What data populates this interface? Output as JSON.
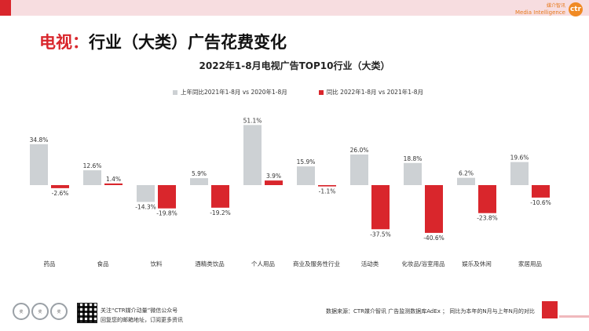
{
  "header": {
    "logo_cn": "媒介智讯",
    "logo_en": "Media Intelligence",
    "logo_mark": "ctr"
  },
  "page_title": {
    "prefix": "电视：",
    "main": "行业（大类）广告花费变化"
  },
  "colors": {
    "series_prior": "#cdd1d4",
    "series_current": "#d9262c",
    "accent": "#d9262c"
  },
  "chart_data": {
    "type": "bar",
    "title": "2022年1-8月电视广告TOP10行业（大类）",
    "categories": [
      "药品",
      "食品",
      "饮料",
      "酒精类饮品",
      "个人用品",
      "商业及服务性行业",
      "活动类",
      "化妆品/浴室用品",
      "娱乐及休闲",
      "家居用品"
    ],
    "series": [
      {
        "name": "上年同比2021年1-8月  vs  2020年1-8月",
        "values": [
          34.8,
          12.6,
          -14.3,
          5.9,
          51.1,
          15.9,
          26.0,
          18.8,
          6.2,
          19.6
        ],
        "labels": [
          "34.8%",
          "12.6%",
          "-14.3%",
          "5.9%",
          "51.1%",
          "15.9%",
          "26.0%",
          "18.8%",
          "6.2%",
          "19.6%"
        ]
      },
      {
        "name": "同比 2022年1-8月  vs  2021年1-8月",
        "values": [
          -2.6,
          1.4,
          -19.8,
          -19.2,
          3.9,
          -1.1,
          -37.5,
          -40.6,
          -23.8,
          -10.6
        ],
        "labels": [
          "-2.6%",
          "1.4%",
          "-19.8%",
          "-19.2%",
          "3.9%",
          "-1.1%",
          "-37.5%",
          "-40.6%",
          "-23.8%",
          "-10.6%"
        ]
      }
    ],
    "legend_position": "top",
    "grid": false
  },
  "footer": {
    "badges": [
      "奖",
      "奖",
      "奖"
    ],
    "follow_line1": "关注“CTR媒介动量”微信公众号",
    "follow_line2": "回复您的邮箱地址，订阅更多资讯",
    "source": "数据来源：CTR媒介智讯 广告监测数据库AdEx ； 同比为本年的N月与上年N月的对比"
  }
}
